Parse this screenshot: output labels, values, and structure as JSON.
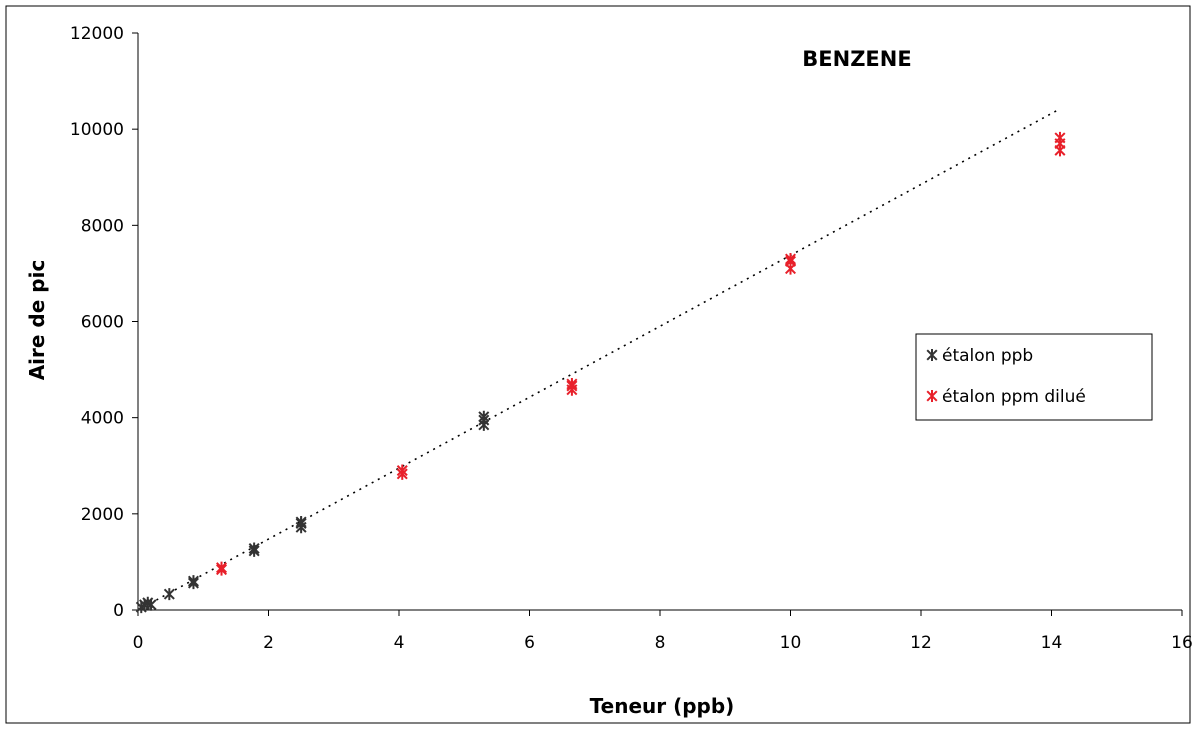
{
  "chart_data": {
    "type": "scatter",
    "title": "BENZENE",
    "xlabel": "Teneur (ppb)",
    "ylabel": "Aire de pic",
    "xlim": [
      0,
      16
    ],
    "ylim": [
      0,
      12000
    ],
    "x_ticks": [
      "0",
      "2",
      "4",
      "6",
      "8",
      "10",
      "12",
      "14",
      "16"
    ],
    "y_ticks": [
      "0",
      "2000",
      "4000",
      "6000",
      "8000",
      "10000",
      "12000"
    ],
    "grid": false,
    "legend_position": "right",
    "colors": {
      "etalon_ppb": "#333333",
      "etalon_ppm": "#e8202a",
      "trendline": "#000000"
    },
    "trendline": {
      "x": [
        0,
        14.1
      ],
      "y": [
        0,
        10400
      ]
    },
    "series": [
      {
        "name": "étalon ppb",
        "marker": "asterisk",
        "points": [
          [
            0.05,
            60
          ],
          [
            0.1,
            110
          ],
          [
            0.15,
            150
          ],
          [
            0.2,
            110
          ],
          [
            0.48,
            330
          ],
          [
            0.85,
            560
          ],
          [
            0.85,
            600
          ],
          [
            1.78,
            1230
          ],
          [
            1.78,
            1280
          ],
          [
            2.5,
            1720
          ],
          [
            2.5,
            1800
          ],
          [
            2.5,
            1830
          ],
          [
            5.3,
            3850
          ],
          [
            5.3,
            3950
          ],
          [
            5.3,
            4020
          ]
        ]
      },
      {
        "name": "étalon ppm dilué",
        "marker": "asterisk",
        "points": [
          [
            1.28,
            840
          ],
          [
            1.28,
            880
          ],
          [
            4.05,
            2830
          ],
          [
            4.05,
            2900
          ],
          [
            6.65,
            4580
          ],
          [
            6.65,
            4660
          ],
          [
            6.65,
            4700
          ],
          [
            10.0,
            7100
          ],
          [
            10.0,
            7250
          ],
          [
            10.0,
            7300
          ],
          [
            14.13,
            9560
          ],
          [
            14.13,
            9700
          ],
          [
            14.13,
            9820
          ]
        ]
      }
    ]
  }
}
